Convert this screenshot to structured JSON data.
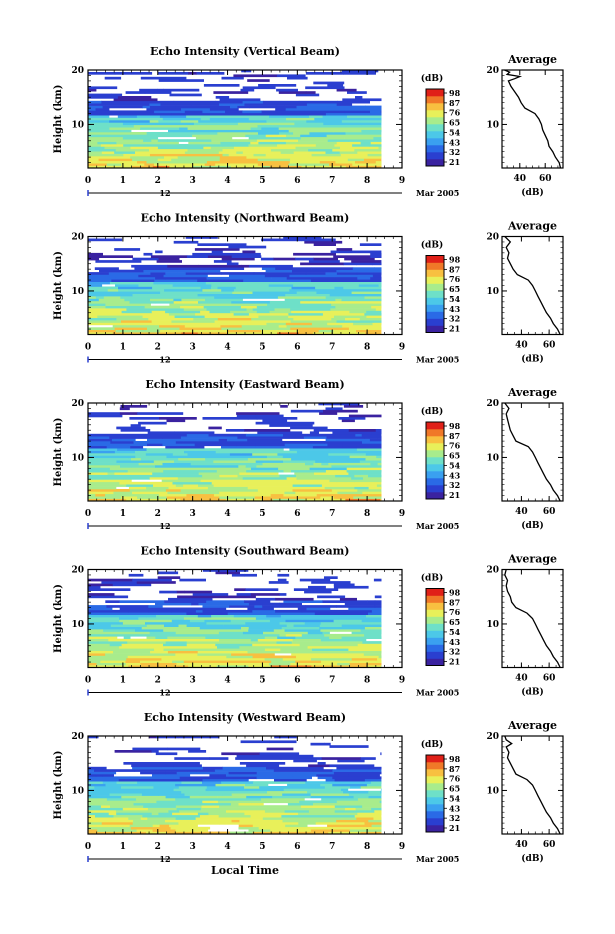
{
  "footer": {
    "xlabel": "Local Time"
  },
  "colors": {
    "colormap": [
      "#3a22a0",
      "#2a3fd0",
      "#2a6ae6",
      "#3aa0f0",
      "#4cc8e8",
      "#6ee0c8",
      "#a8ec8c",
      "#e8f05a",
      "#f8c040",
      "#f07828",
      "#e02018"
    ],
    "line": "#000000",
    "background": "#ffffff"
  },
  "chart_data": [
    {
      "type": "heatmap",
      "title": "Echo Intensity (Vertical Beam)",
      "ylabel": "Height (km)",
      "ylim": [
        2,
        20
      ],
      "yticks": [
        "20",
        "10"
      ],
      "xticks": [
        "0",
        "1",
        "2",
        "3",
        "4",
        "5",
        "6",
        "7",
        "8",
        "9"
      ],
      "xlim": [
        0,
        9
      ],
      "data_x_extent": [
        0,
        8.4
      ],
      "date_day": "12",
      "date_month": "Mar 2005",
      "colorbar": {
        "unit": "(dB)",
        "ticks": [
          "98",
          "87",
          "76",
          "65",
          "54",
          "43",
          "32",
          "21"
        ],
        "range": [
          21,
          98
        ]
      },
      "profile": {
        "title": "Average",
        "xlabel": "(dB)",
        "xticks": [
          "40",
          "60"
        ],
        "xlim": [
          26,
          74
        ],
        "yticks": [
          "20",
          "10"
        ],
        "points": [
          [
            72,
            2
          ],
          [
            71,
            3
          ],
          [
            68,
            4
          ],
          [
            66,
            5
          ],
          [
            63,
            6
          ],
          [
            62,
            7
          ],
          [
            60,
            8
          ],
          [
            58,
            9
          ],
          [
            57,
            10
          ],
          [
            55,
            11
          ],
          [
            52,
            12
          ],
          [
            44,
            13
          ],
          [
            41,
            14
          ],
          [
            39,
            15
          ],
          [
            36,
            16
          ],
          [
            33,
            17
          ],
          [
            31,
            18
          ],
          [
            36,
            18.4
          ],
          [
            40,
            18.8
          ],
          [
            30,
            19.2
          ],
          [
            32,
            19.6
          ],
          [
            28,
            20
          ]
        ]
      }
    },
    {
      "type": "heatmap",
      "title": "Echo Intensity (Northward Beam)",
      "ylabel": "Height (km)",
      "ylim": [
        2,
        20
      ],
      "yticks": [
        "20",
        "10"
      ],
      "xticks": [
        "0",
        "1",
        "2",
        "3",
        "4",
        "5",
        "6",
        "7",
        "8",
        "9"
      ],
      "xlim": [
        0,
        9
      ],
      "data_x_extent": [
        0,
        8.4
      ],
      "date_day": "12",
      "date_month": "Mar 2005",
      "colorbar": {
        "unit": "(dB)",
        "ticks": [
          "98",
          "87",
          "76",
          "65",
          "54",
          "43",
          "32",
          "21"
        ],
        "range": [
          21,
          98
        ]
      },
      "profile": {
        "title": "Average",
        "xlabel": "(dB)",
        "xticks": [
          "40",
          "60"
        ],
        "xlim": [
          26,
          70
        ],
        "yticks": [
          "20",
          "10"
        ],
        "points": [
          [
            68,
            2
          ],
          [
            66,
            3
          ],
          [
            63,
            4
          ],
          [
            61,
            5
          ],
          [
            58,
            6
          ],
          [
            56,
            7
          ],
          [
            54,
            8
          ],
          [
            52,
            9
          ],
          [
            50,
            10
          ],
          [
            48,
            11
          ],
          [
            45,
            12
          ],
          [
            37,
            13
          ],
          [
            34,
            14
          ],
          [
            32,
            15
          ],
          [
            30,
            16
          ],
          [
            31,
            17
          ],
          [
            29,
            18
          ],
          [
            32,
            19
          ],
          [
            28,
            20
          ]
        ]
      }
    },
    {
      "type": "heatmap",
      "title": "Echo Intensity (Eastward Beam)",
      "ylabel": "Height (km)",
      "ylim": [
        2,
        20
      ],
      "yticks": [
        "20",
        "10"
      ],
      "xticks": [
        "0",
        "1",
        "2",
        "3",
        "4",
        "5",
        "6",
        "7",
        "8",
        "9"
      ],
      "xlim": [
        0,
        9
      ],
      "data_x_extent": [
        0,
        8.4
      ],
      "date_day": "12",
      "date_month": "Mar 2005",
      "colorbar": {
        "unit": "(dB)",
        "ticks": [
          "98",
          "87",
          "76",
          "65",
          "54",
          "43",
          "32",
          "21"
        ],
        "range": [
          21,
          98
        ]
      },
      "profile": {
        "title": "Average",
        "xlabel": "(dB)",
        "xticks": [
          "40",
          "60"
        ],
        "xlim": [
          26,
          70
        ],
        "yticks": [
          "20",
          "10"
        ],
        "points": [
          [
            68,
            2
          ],
          [
            66,
            3
          ],
          [
            63,
            4
          ],
          [
            61,
            5
          ],
          [
            58,
            6
          ],
          [
            56,
            7
          ],
          [
            54,
            8
          ],
          [
            52,
            9
          ],
          [
            50,
            10
          ],
          [
            48,
            11
          ],
          [
            45,
            12
          ],
          [
            36,
            13
          ],
          [
            34,
            14
          ],
          [
            32,
            15
          ],
          [
            31,
            16
          ],
          [
            30,
            17
          ],
          [
            29,
            18
          ],
          [
            31,
            19
          ],
          [
            28,
            20
          ]
        ]
      }
    },
    {
      "type": "heatmap",
      "title": "Echo Intensity (Southward Beam)",
      "ylabel": "Height (km)",
      "ylim": [
        2,
        20
      ],
      "yticks": [
        "20",
        "10"
      ],
      "xticks": [
        "0",
        "1",
        "2",
        "3",
        "4",
        "5",
        "6",
        "7",
        "8",
        "9"
      ],
      "xlim": [
        0,
        9
      ],
      "data_x_extent": [
        0,
        8.4
      ],
      "date_day": "12",
      "date_month": "Mar 2005",
      "colorbar": {
        "unit": "(dB)",
        "ticks": [
          "98",
          "87",
          "76",
          "65",
          "54",
          "43",
          "32",
          "21"
        ],
        "range": [
          21,
          98
        ]
      },
      "profile": {
        "title": "Average",
        "xlabel": "(dB)",
        "xticks": [
          "40",
          "60"
        ],
        "xlim": [
          26,
          70
        ],
        "yticks": [
          "20",
          "10"
        ],
        "points": [
          [
            68,
            2
          ],
          [
            66,
            3
          ],
          [
            63,
            4
          ],
          [
            61,
            5
          ],
          [
            58,
            6
          ],
          [
            56,
            7
          ],
          [
            54,
            8
          ],
          [
            52,
            9
          ],
          [
            50,
            10
          ],
          [
            48,
            11
          ],
          [
            44,
            12
          ],
          [
            36,
            13
          ],
          [
            33,
            14
          ],
          [
            32,
            15
          ],
          [
            30,
            16
          ],
          [
            29,
            17
          ],
          [
            30,
            18
          ],
          [
            28,
            19
          ],
          [
            29,
            20
          ]
        ]
      }
    },
    {
      "type": "heatmap",
      "title": "Echo Intensity (Westward Beam)",
      "ylabel": "Height (km)",
      "ylim": [
        2,
        20
      ],
      "yticks": [
        "20",
        "10"
      ],
      "xticks": [
        "0",
        "1",
        "2",
        "3",
        "4",
        "5",
        "6",
        "7",
        "8",
        "9"
      ],
      "xlim": [
        0,
        9
      ],
      "data_x_extent": [
        0,
        8.4
      ],
      "date_day": "12",
      "date_month": "Mar 2005",
      "colorbar": {
        "unit": "(dB)",
        "ticks": [
          "98",
          "87",
          "76",
          "65",
          "54",
          "43",
          "32",
          "21"
        ],
        "range": [
          21,
          98
        ]
      },
      "profile": {
        "title": "Average",
        "xlabel": "(dB)",
        "xticks": [
          "40",
          "60"
        ],
        "xlim": [
          26,
          70
        ],
        "yticks": [
          "20",
          "10"
        ],
        "points": [
          [
            68,
            2
          ],
          [
            66,
            3
          ],
          [
            63,
            4
          ],
          [
            61,
            5
          ],
          [
            58,
            6
          ],
          [
            56,
            7
          ],
          [
            54,
            8
          ],
          [
            52,
            9
          ],
          [
            50,
            10
          ],
          [
            48,
            11
          ],
          [
            44,
            12
          ],
          [
            36,
            13
          ],
          [
            34,
            14
          ],
          [
            32,
            15
          ],
          [
            30,
            16
          ],
          [
            31,
            17
          ],
          [
            29,
            18
          ],
          [
            33,
            18.6
          ],
          [
            29,
            19.3
          ],
          [
            28,
            20
          ]
        ]
      }
    }
  ]
}
